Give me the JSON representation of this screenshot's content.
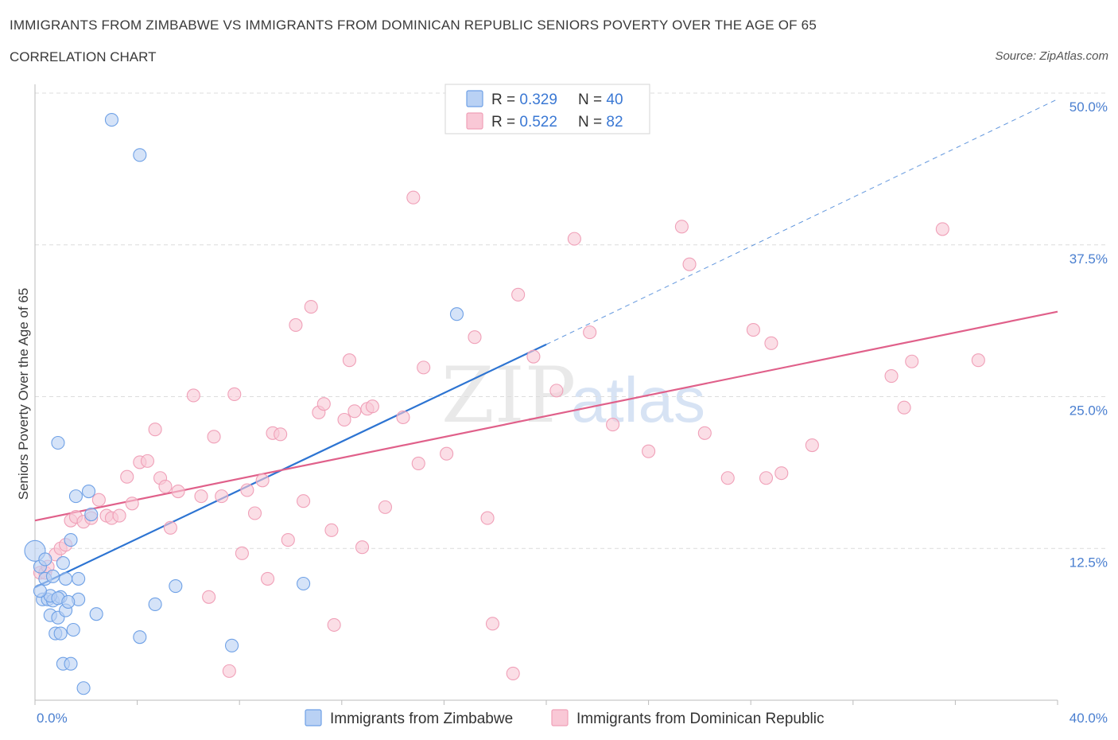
{
  "header": {
    "title": "IMMIGRANTS FROM ZIMBABWE VS IMMIGRANTS FROM DOMINICAN REPUBLIC SENIORS POVERTY OVER THE AGE OF 65",
    "subtitle": "CORRELATION CHART",
    "source": "Source: ZipAtlas.com"
  },
  "chart_data": {
    "type": "scatter",
    "title": "IMMIGRANTS FROM ZIMBABWE VS IMMIGRANTS FROM DOMINICAN REPUBLIC SENIORS POVERTY OVER THE AGE OF 65",
    "ylabel": "Seniors Poverty Over the Age of 65",
    "xlabel": "",
    "xlim": [
      0,
      40
    ],
    "ylim": [
      0,
      50
    ],
    "x_tick_labels": [
      "0.0%",
      "40.0%"
    ],
    "y_tick_labels": [
      "12.5%",
      "25.0%",
      "37.5%",
      "50.0%"
    ],
    "y_ticks": [
      12.5,
      25.0,
      37.5,
      50.0
    ],
    "grid": true,
    "legend_position": "top-center",
    "watermark": "ZIPatlas",
    "stats": [
      {
        "r_label": "R = ",
        "r_value": "0.329",
        "n_label": "N = ",
        "n_value": "40"
      },
      {
        "r_label": "R = ",
        "r_value": "0.522",
        "n_label": "N = ",
        "n_value": "82"
      }
    ],
    "series": [
      {
        "name": "Immigrants from Zimbabwe",
        "color": "#6fa1e6",
        "fill": "#b9d1f4",
        "trend_color": "#2d74d2",
        "trend": {
          "x": [
            0.0,
            20.0
          ],
          "y": [
            9.3,
            29.3
          ]
        },
        "trend_ext": {
          "x": [
            20.0,
            40.0
          ],
          "y": [
            29.3,
            49.5
          ]
        },
        "points": [
          [
            0.0,
            12.3
          ],
          [
            0.2,
            11.0
          ],
          [
            0.4,
            10.0
          ],
          [
            0.3,
            8.3
          ],
          [
            0.5,
            8.3
          ],
          [
            0.6,
            7.0
          ],
          [
            0.7,
            10.2
          ],
          [
            0.7,
            8.2
          ],
          [
            0.8,
            5.5
          ],
          [
            0.9,
            6.8
          ],
          [
            1.0,
            5.5
          ],
          [
            1.1,
            3.0
          ],
          [
            1.0,
            8.5
          ],
          [
            1.1,
            11.3
          ],
          [
            1.2,
            10.0
          ],
          [
            1.2,
            7.4
          ],
          [
            1.4,
            13.2
          ],
          [
            1.4,
            3.0
          ],
          [
            1.5,
            5.8
          ],
          [
            1.6,
            16.8
          ],
          [
            1.7,
            8.3
          ],
          [
            1.7,
            10.0
          ],
          [
            1.9,
            1.0
          ],
          [
            2.1,
            17.2
          ],
          [
            2.2,
            15.3
          ],
          [
            2.4,
            7.1
          ],
          [
            0.9,
            21.2
          ],
          [
            3.0,
            47.8
          ],
          [
            4.1,
            44.9
          ],
          [
            4.1,
            5.2
          ],
          [
            4.7,
            7.9
          ],
          [
            5.5,
            9.4
          ],
          [
            7.7,
            4.5
          ],
          [
            10.5,
            9.6
          ],
          [
            16.5,
            31.8
          ],
          [
            0.4,
            11.6
          ],
          [
            0.6,
            8.6
          ],
          [
            0.9,
            8.4
          ],
          [
            1.3,
            8.1
          ],
          [
            0.2,
            9.0
          ]
        ]
      },
      {
        "name": "Immigrants from Dominican Republic",
        "color": "#f0a0b8",
        "fill": "#f9c8d6",
        "trend_color": "#e0608a",
        "trend": {
          "x": [
            0.0,
            40.0
          ],
          "y": [
            14.8,
            32.0
          ]
        },
        "points": [
          [
            0.2,
            10.5
          ],
          [
            0.4,
            10.5
          ],
          [
            0.5,
            11.0
          ],
          [
            0.8,
            12.0
          ],
          [
            1.0,
            12.5
          ],
          [
            1.2,
            12.8
          ],
          [
            1.4,
            14.8
          ],
          [
            1.6,
            15.1
          ],
          [
            1.9,
            14.7
          ],
          [
            2.2,
            15.0
          ],
          [
            2.5,
            16.5
          ],
          [
            2.8,
            15.2
          ],
          [
            3.0,
            15.0
          ],
          [
            3.3,
            15.2
          ],
          [
            3.6,
            18.4
          ],
          [
            3.8,
            16.2
          ],
          [
            4.1,
            19.6
          ],
          [
            4.4,
            19.7
          ],
          [
            4.7,
            22.3
          ],
          [
            4.9,
            18.3
          ],
          [
            5.1,
            17.6
          ],
          [
            5.3,
            14.2
          ],
          [
            5.6,
            17.2
          ],
          [
            6.2,
            25.1
          ],
          [
            6.5,
            16.8
          ],
          [
            6.8,
            8.5
          ],
          [
            7.0,
            21.7
          ],
          [
            7.3,
            16.8
          ],
          [
            7.6,
            2.4
          ],
          [
            7.8,
            25.2
          ],
          [
            8.1,
            12.1
          ],
          [
            8.3,
            17.3
          ],
          [
            8.6,
            15.4
          ],
          [
            8.9,
            18.1
          ],
          [
            9.1,
            10.0
          ],
          [
            9.3,
            22.0
          ],
          [
            9.6,
            21.9
          ],
          [
            9.9,
            13.2
          ],
          [
            10.2,
            30.9
          ],
          [
            10.5,
            16.4
          ],
          [
            10.8,
            32.4
          ],
          [
            11.1,
            23.7
          ],
          [
            11.3,
            24.4
          ],
          [
            11.6,
            14.0
          ],
          [
            11.7,
            6.2
          ],
          [
            12.1,
            23.1
          ],
          [
            12.3,
            28.0
          ],
          [
            12.5,
            23.8
          ],
          [
            12.8,
            12.6
          ],
          [
            13.0,
            24.0
          ],
          [
            13.2,
            24.2
          ],
          [
            13.7,
            15.9
          ],
          [
            14.4,
            23.3
          ],
          [
            14.8,
            41.4
          ],
          [
            15.0,
            19.5
          ],
          [
            15.2,
            27.4
          ],
          [
            16.1,
            20.3
          ],
          [
            17.2,
            29.9
          ],
          [
            17.7,
            15.0
          ],
          [
            17.9,
            6.3
          ],
          [
            18.7,
            2.2
          ],
          [
            18.9,
            33.4
          ],
          [
            19.5,
            28.3
          ],
          [
            20.4,
            25.5
          ],
          [
            21.1,
            38.0
          ],
          [
            21.7,
            30.3
          ],
          [
            22.6,
            22.7
          ],
          [
            24.0,
            20.5
          ],
          [
            25.3,
            39.0
          ],
          [
            25.6,
            35.9
          ],
          [
            26.2,
            22.0
          ],
          [
            27.1,
            18.3
          ],
          [
            28.1,
            30.5
          ],
          [
            28.6,
            18.3
          ],
          [
            28.8,
            29.4
          ],
          [
            29.2,
            18.7
          ],
          [
            30.4,
            21.0
          ],
          [
            33.5,
            26.7
          ],
          [
            34.0,
            24.1
          ],
          [
            34.3,
            27.9
          ],
          [
            35.5,
            38.8
          ],
          [
            36.9,
            28.0
          ]
        ]
      }
    ]
  }
}
